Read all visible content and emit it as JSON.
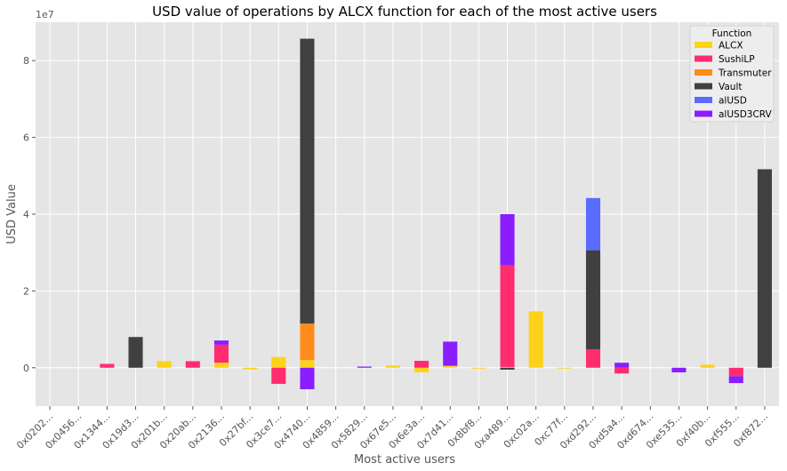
{
  "chart_data": {
    "type": "bar",
    "stacked": true,
    "title": "USD value of operations by ALCX function for each of the most active users",
    "xlabel": "Most active users",
    "ylabel": "USD Value",
    "y_offset_text": "1e7",
    "ylim": [
      -1.0,
      9.0
    ],
    "yticks": [
      0,
      2,
      4,
      6,
      8
    ],
    "grid": true,
    "legend": {
      "title": "Function",
      "position": "top-right"
    },
    "categories": [
      "0x0202...",
      "0x0456...",
      "0x1344...",
      "0x19d3...",
      "0x201b...",
      "0x20ab...",
      "0x2136...",
      "0x27bf...",
      "0x3ce7...",
      "0x4740...",
      "0x4859...",
      "0x5829...",
      "0x67e5...",
      "0x6e3a...",
      "0x7d41...",
      "0x8bf8...",
      "0xa489...",
      "0xc02a...",
      "0xc77f...",
      "0xd292...",
      "0xd5a4...",
      "0xd674...",
      "0xe535...",
      "0xf40b...",
      "0xf555...",
      "0xf872..."
    ],
    "series": [
      {
        "name": "ALCX",
        "color": "#FFD21A",
        "values": [
          0,
          0,
          0,
          0,
          0.17,
          0,
          0.13,
          -0.04,
          0.28,
          0.2,
          0,
          0,
          0.06,
          -0.12,
          0.05,
          -0.02,
          0.02,
          1.47,
          -0.02,
          0,
          0,
          0,
          0,
          0.08,
          0,
          0
        ]
      },
      {
        "name": "SushiLP",
        "color": "#FF2D6E",
        "values": [
          0,
          0,
          0.1,
          0,
          0,
          0.17,
          0.47,
          0,
          -0.42,
          0,
          0,
          0,
          0,
          0.18,
          0,
          0,
          2.65,
          0,
          0,
          0.48,
          -0.15,
          0,
          0,
          0,
          -0.22,
          0
        ]
      },
      {
        "name": "Transmuter",
        "color": "#FF8C1A",
        "values": [
          0,
          0,
          0,
          0,
          0,
          0,
          0,
          0,
          0,
          0.95,
          0,
          0,
          0,
          0,
          0,
          0,
          0,
          0,
          0,
          0,
          0,
          0,
          0,
          0,
          0,
          0
        ]
      },
      {
        "name": "Vault",
        "color": "#404040",
        "values": [
          0,
          0,
          0,
          0.8,
          0,
          0,
          0,
          0,
          0,
          7.42,
          0,
          0,
          0,
          0,
          0,
          0,
          -0.05,
          0,
          0,
          2.58,
          0,
          0,
          0,
          0,
          0,
          5.17
        ]
      },
      {
        "name": "alUSD",
        "color": "#5A6BFF",
        "values": [
          0,
          0,
          0,
          0,
          0,
          0,
          0,
          0,
          0,
          0,
          0,
          0,
          0,
          0,
          0,
          0,
          0,
          0,
          0,
          1.36,
          0,
          0,
          0,
          0,
          0,
          0
        ]
      },
      {
        "name": "alUSD3CRV",
        "color": "#8A1EFF",
        "values": [
          0,
          0,
          0,
          0,
          0,
          0,
          0.11,
          0,
          0,
          -0.56,
          0,
          0.03,
          0,
          0,
          0.63,
          0,
          1.33,
          0,
          0,
          0,
          0.13,
          0,
          -0.12,
          0,
          -0.18,
          0
        ]
      }
    ]
  }
}
